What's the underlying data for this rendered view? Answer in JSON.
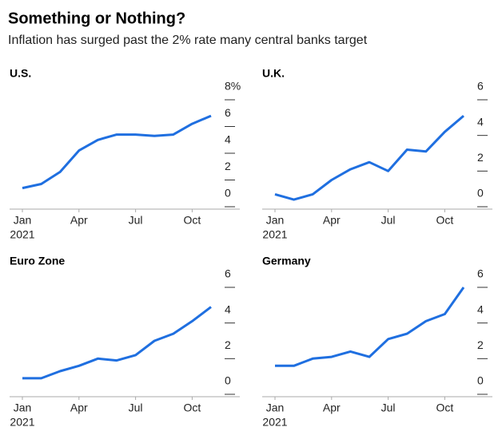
{
  "title": "Something or Nothing?",
  "subtitle": "Inflation has surged past the 2% rate many central banks target",
  "chart_data": [
    {
      "type": "line",
      "title": "U.S.",
      "color": "#1f6fe0",
      "x": [
        "2021-01",
        "2021-02",
        "2021-03",
        "2021-04",
        "2021-05",
        "2021-06",
        "2021-07",
        "2021-08",
        "2021-09",
        "2021-10",
        "2021-11"
      ],
      "values": [
        1.4,
        1.7,
        2.6,
        4.2,
        5.0,
        5.4,
        5.4,
        5.3,
        5.4,
        6.2,
        6.8
      ],
      "xticks": [
        {
          "value": "2021-01",
          "label": "Jan"
        },
        {
          "value": "2021-04",
          "label": "Apr"
        },
        {
          "value": "2021-07",
          "label": "Jul"
        },
        {
          "value": "2021-10",
          "label": "Oct"
        }
      ],
      "xtick_year": "2021",
      "ylim": [
        0,
        8
      ],
      "yticks": [
        0,
        2,
        4,
        6,
        {
          "value": 8,
          "label": "8%"
        }
      ]
    },
    {
      "type": "line",
      "title": "U.K.",
      "color": "#1f6fe0",
      "x": [
        "2021-01",
        "2021-02",
        "2021-03",
        "2021-04",
        "2021-05",
        "2021-06",
        "2021-07",
        "2021-08",
        "2021-09",
        "2021-10",
        "2021-11"
      ],
      "values": [
        0.7,
        0.4,
        0.7,
        1.5,
        2.1,
        2.5,
        2.0,
        3.2,
        3.1,
        4.2,
        5.1
      ],
      "xticks": [
        {
          "value": "2021-01",
          "label": "Jan"
        },
        {
          "value": "2021-04",
          "label": "Apr"
        },
        {
          "value": "2021-07",
          "label": "Jul"
        },
        {
          "value": "2021-10",
          "label": "Oct"
        }
      ],
      "xtick_year": "2021",
      "ylim": [
        0,
        6
      ],
      "yticks": [
        0,
        2,
        4,
        6
      ]
    },
    {
      "type": "line",
      "title": "Euro Zone",
      "color": "#1f6fe0",
      "x": [
        "2021-01",
        "2021-02",
        "2021-03",
        "2021-04",
        "2021-05",
        "2021-06",
        "2021-07",
        "2021-08",
        "2021-09",
        "2021-10",
        "2021-11"
      ],
      "values": [
        0.9,
        0.9,
        1.3,
        1.6,
        2.0,
        1.9,
        2.2,
        3.0,
        3.4,
        4.1,
        4.9
      ],
      "xticks": [
        {
          "value": "2021-01",
          "label": "Jan"
        },
        {
          "value": "2021-04",
          "label": "Apr"
        },
        {
          "value": "2021-07",
          "label": "Jul"
        },
        {
          "value": "2021-10",
          "label": "Oct"
        }
      ],
      "xtick_year": "2021",
      "ylim": [
        0,
        6
      ],
      "yticks": [
        0,
        2,
        4,
        6
      ]
    },
    {
      "type": "line",
      "title": "Germany",
      "color": "#1f6fe0",
      "x": [
        "2021-01",
        "2021-02",
        "2021-03",
        "2021-04",
        "2021-05",
        "2021-06",
        "2021-07",
        "2021-08",
        "2021-09",
        "2021-10",
        "2021-11"
      ],
      "values": [
        1.6,
        1.6,
        2.0,
        2.1,
        2.4,
        2.1,
        3.1,
        3.4,
        4.1,
        4.5,
        6.0
      ],
      "xticks": [
        {
          "value": "2021-01",
          "label": "Jan"
        },
        {
          "value": "2021-04",
          "label": "Apr"
        },
        {
          "value": "2021-07",
          "label": "Jul"
        },
        {
          "value": "2021-10",
          "label": "Oct"
        }
      ],
      "xtick_year": "2021",
      "ylim": [
        0,
        6
      ],
      "yticks": [
        0,
        2,
        4,
        6
      ]
    }
  ]
}
